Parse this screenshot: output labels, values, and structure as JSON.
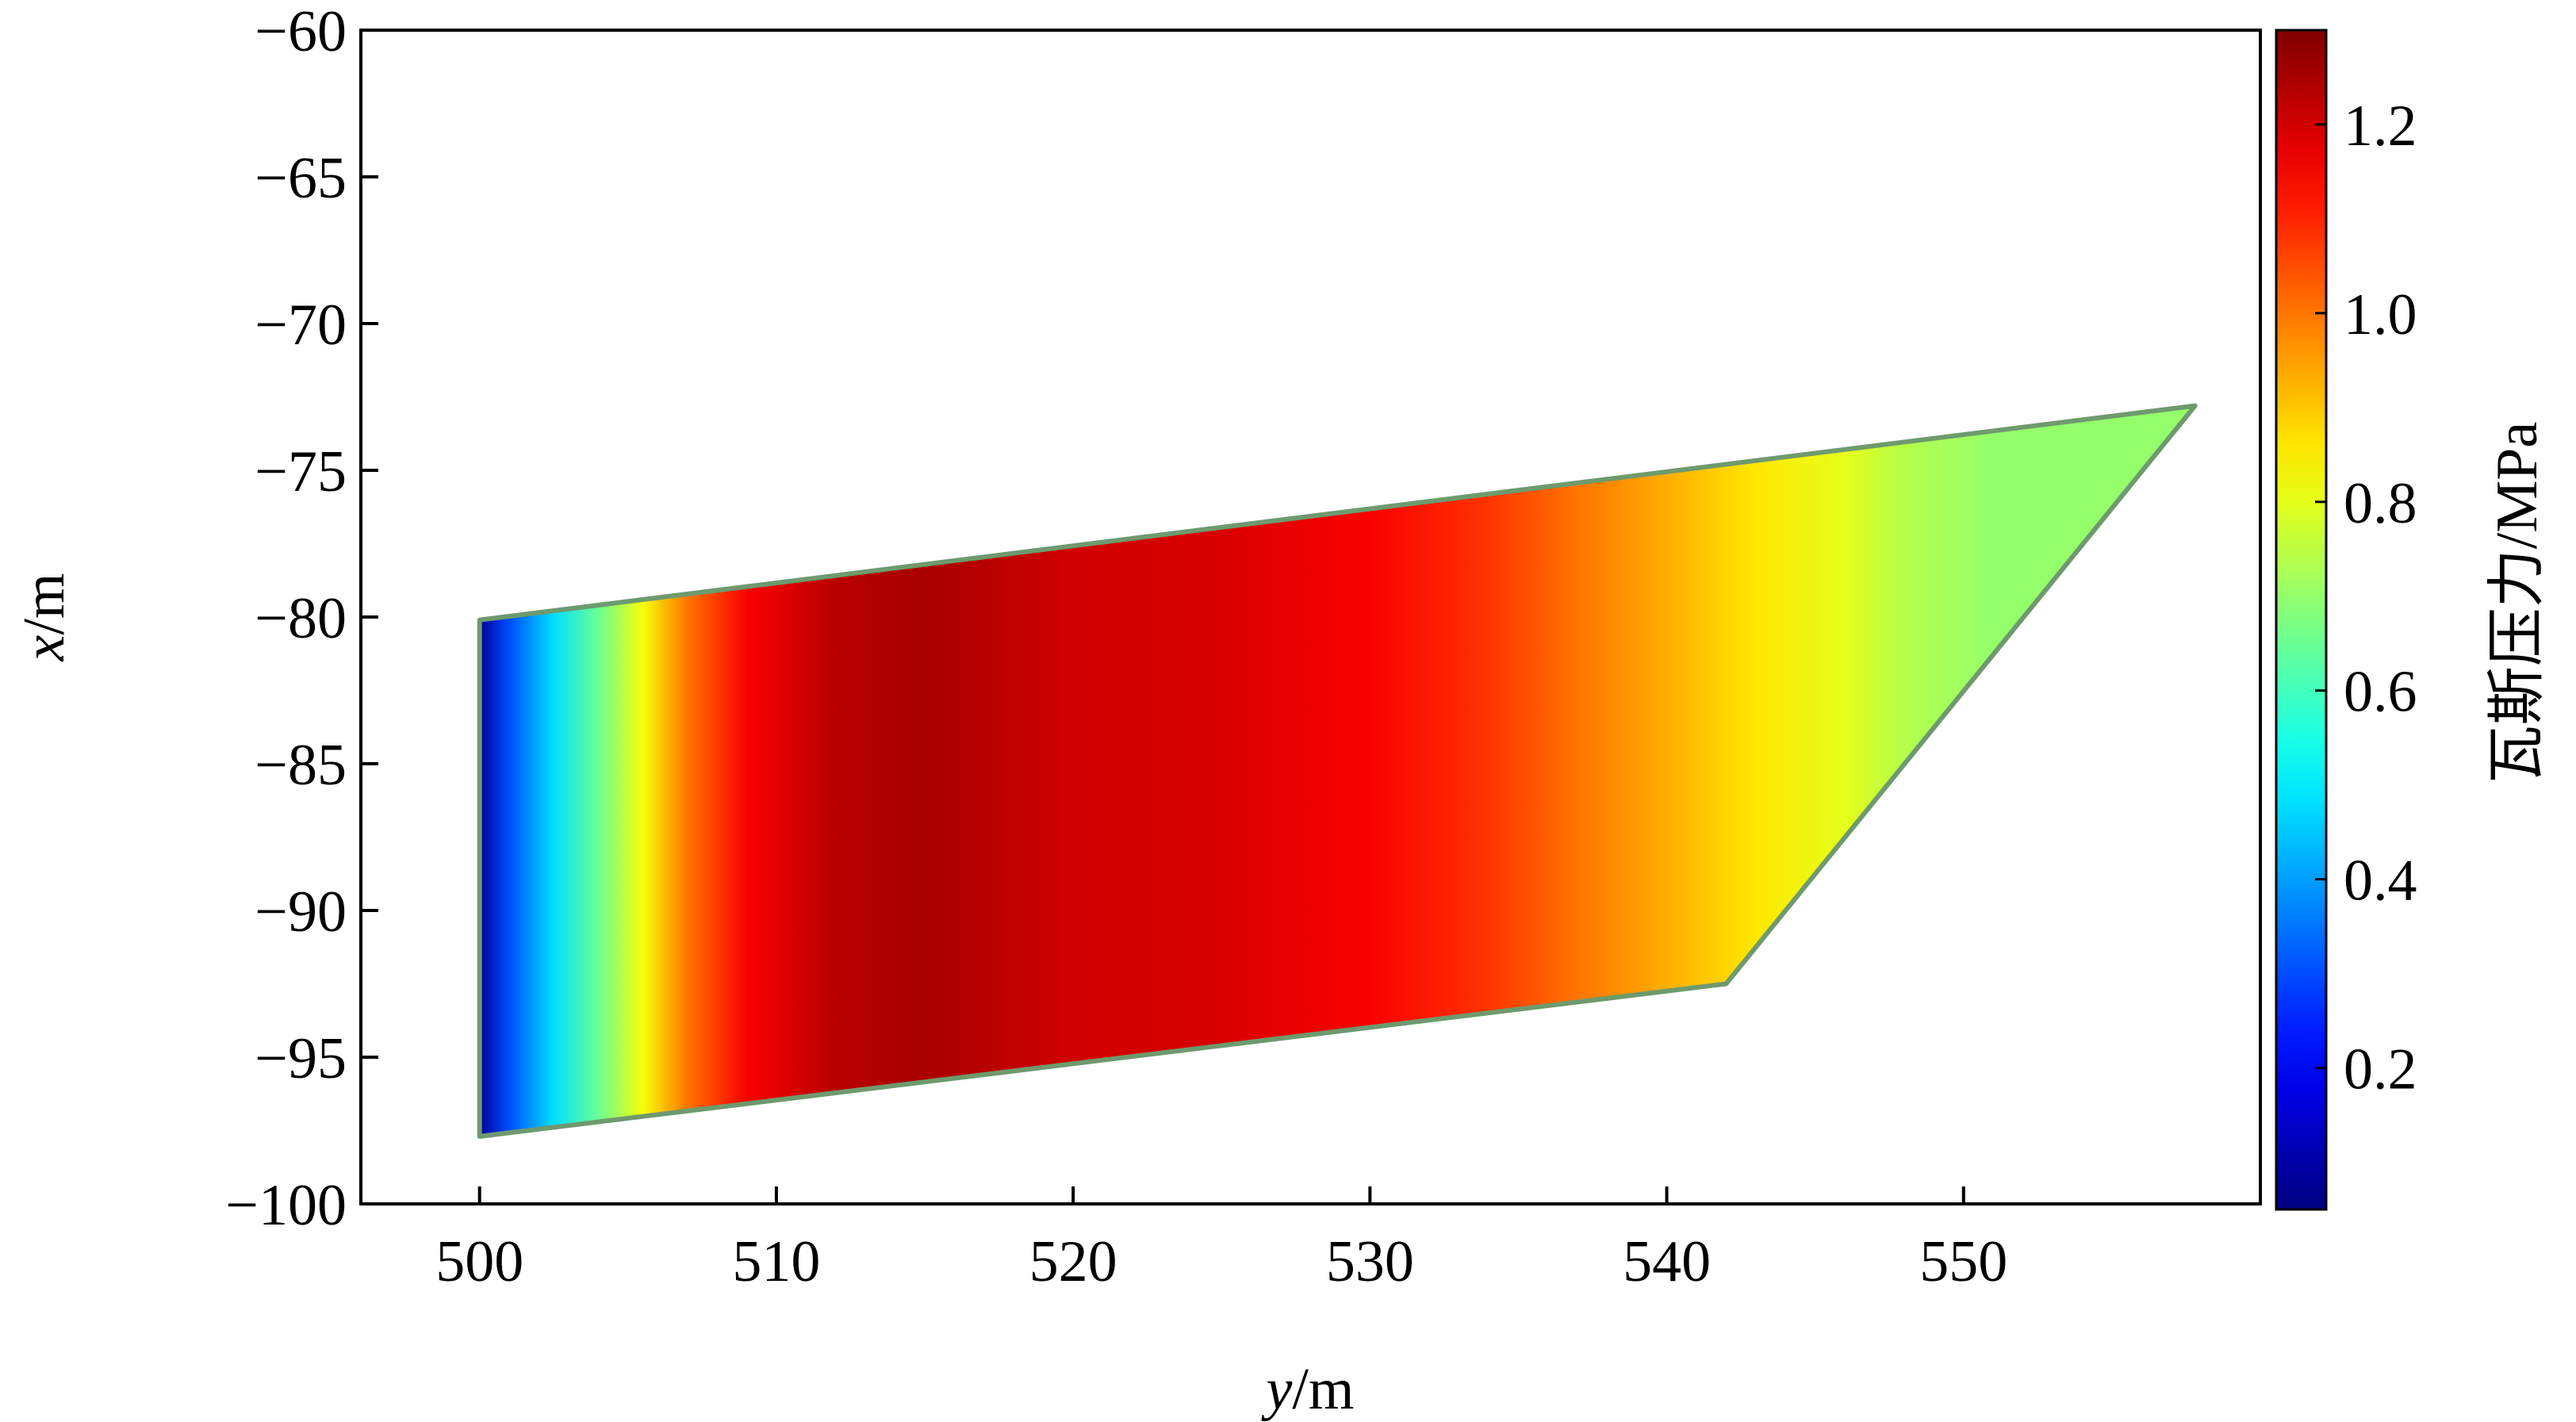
{
  "chart_data": {
    "type": "heatmap",
    "xlabel": {
      "var": "y",
      "unit": "/m"
    },
    "ylabel": {
      "var": "x",
      "unit": "/m"
    },
    "xlim": [
      496,
      560
    ],
    "ylim": [
      -100,
      -60
    ],
    "x_ticks": [
      500,
      510,
      520,
      530,
      540,
      550
    ],
    "x_tick_labels": [
      "500",
      "510",
      "520",
      "530",
      "540",
      "550"
    ],
    "y_ticks": [
      -60,
      -65,
      -70,
      -75,
      -80,
      -85,
      -90,
      -95,
      -100
    ],
    "y_tick_labels": [
      "−60",
      "−65",
      "−70",
      "−75",
      "−80",
      "−85",
      "−90",
      "−95",
      "−100"
    ],
    "grid": false,
    "colorbar": {
      "label": "瓦斯压力/MPa",
      "colormap": "jet",
      "range": [
        0.05,
        1.3
      ],
      "ticks": [
        0.2,
        0.4,
        0.6,
        0.8,
        1.0,
        1.2
      ],
      "tick_labels": [
        "0.2",
        "0.4",
        "0.6",
        "0.8",
        "1.0",
        "1.2"
      ]
    },
    "region_outline": [
      {
        "y": 500,
        "x": -80.1
      },
      {
        "y": 557.8,
        "x": -72.8
      },
      {
        "y": 542,
        "x": -92.5
      },
      {
        "y": 500,
        "x": -97.7
      }
    ],
    "pressure_profile": {
      "y": [
        500,
        501,
        502.5,
        504,
        505.5,
        507,
        509,
        512,
        515,
        520,
        525,
        530,
        534,
        537,
        540,
        543,
        546,
        548,
        551,
        558
      ],
      "value": [
        0.08,
        0.3,
        0.48,
        0.65,
        0.82,
        1.0,
        1.15,
        1.23,
        1.25,
        1.2,
        1.19,
        1.15,
        1.08,
        1.0,
        0.93,
        0.86,
        0.8,
        0.74,
        0.7,
        0.7
      ]
    }
  }
}
